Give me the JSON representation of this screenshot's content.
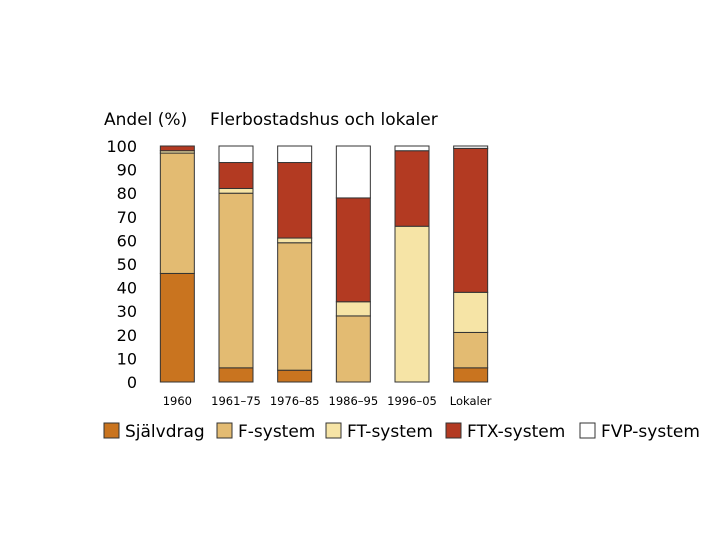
{
  "chart_data": {
    "type": "bar",
    "stacked": true,
    "title": "Flerbostadshus och lokaler",
    "ylabel": "Andel (%)",
    "xlabel": "",
    "ylim": [
      0,
      100
    ],
    "yticks": [
      0,
      10,
      20,
      30,
      40,
      50,
      60,
      70,
      80,
      90,
      100
    ],
    "grid": false,
    "legend_position": "bottom",
    "categories": [
      "1960",
      "1961–75",
      "1976–85",
      "1986–95",
      "1996–05",
      "Lokaler"
    ],
    "series": [
      {
        "name": "Självdrag",
        "color": "#c9741f",
        "values": [
          46,
          6,
          5,
          0,
          0,
          6
        ]
      },
      {
        "name": "F-system",
        "color": "#e3bb72",
        "values": [
          51,
          74,
          54,
          28,
          0,
          15
        ]
      },
      {
        "name": "FT-system",
        "color": "#f6e4a6",
        "values": [
          1,
          2,
          2,
          6,
          66,
          17
        ]
      },
      {
        "name": "FTX-system",
        "color": "#b33a22",
        "values": [
          2,
          11,
          32,
          44,
          32,
          61
        ]
      },
      {
        "name": "FVP-system",
        "color": "#ffffff",
        "values": [
          0,
          7,
          7,
          22,
          2,
          1
        ]
      }
    ]
  }
}
